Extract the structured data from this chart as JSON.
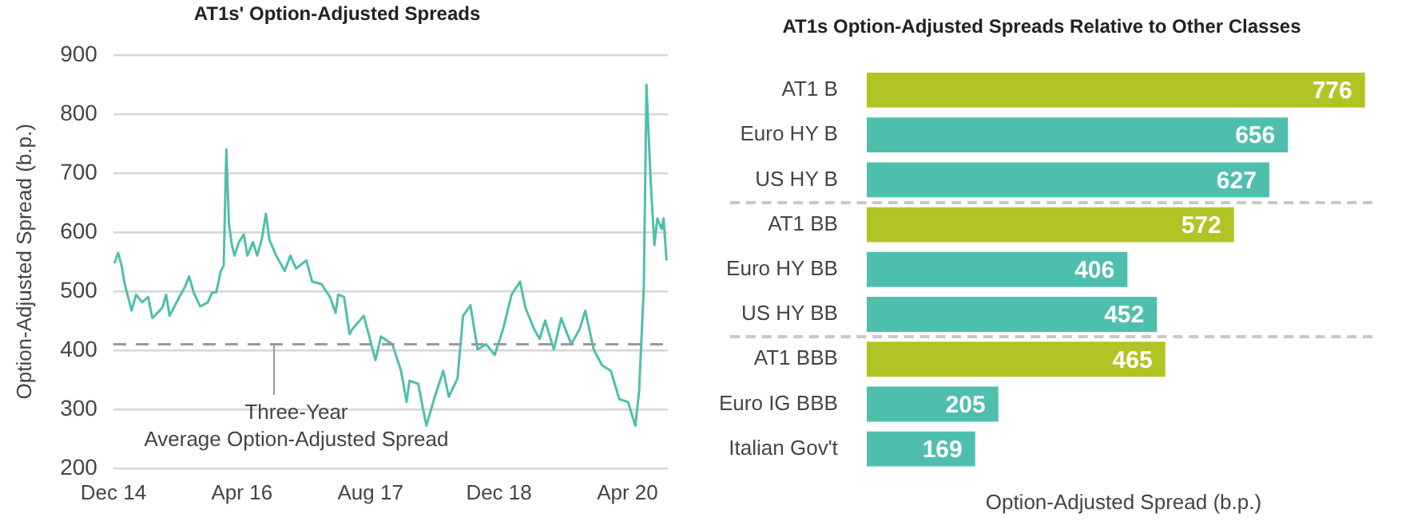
{
  "chart_data": [
    {
      "type": "line",
      "title": "AT1s' Option-Adjusted Spreads",
      "ylabel": "Option-Adjusted Spread (b.p.)",
      "color": "#4fbfad",
      "x": [
        "2014-12-05",
        "2014-12-19",
        "2015-01-01",
        "2015-01-13",
        "2015-02-08",
        "2015-02-25",
        "2015-03-20",
        "2015-04-12",
        "2015-04-28",
        "2015-06-05",
        "2015-06-19",
        "2015-07-02",
        "2015-08-08",
        "2015-08-29",
        "2015-09-14",
        "2015-10-01",
        "2015-10-26",
        "2015-11-24",
        "2015-12-09",
        "2015-12-26",
        "2016-01-12",
        "2016-01-23",
        "2016-02-02",
        "2016-02-12",
        "2016-02-23",
        "2016-03-04",
        "2016-03-21",
        "2016-04-08",
        "2016-04-22",
        "2016-05-13",
        "2016-05-29",
        "2016-06-15",
        "2016-07-01",
        "2016-07-14",
        "2016-08-09",
        "2016-09-10",
        "2016-10-02",
        "2016-10-23",
        "2016-12-01",
        "2016-12-23",
        "2017-01-28",
        "2017-02-09",
        "2017-03-01",
        "2017-03-22",
        "2017-04-01",
        "2017-04-23",
        "2017-05-14",
        "2017-05-25",
        "2017-07-07",
        "2017-08-20",
        "2017-09-10",
        "2017-10-23",
        "2017-11-25",
        "2017-12-16",
        "2017-12-27",
        "2018-01-29",
        "2018-03-01",
        "2018-04-02",
        "2018-05-04",
        "2018-05-25",
        "2018-06-27",
        "2018-07-18",
        "2018-08-15",
        "2018-09-11",
        "2018-10-13",
        "2018-11-15",
        "2018-12-17",
        "2019-01-18",
        "2019-02-19",
        "2019-03-11",
        "2019-04-13",
        "2019-05-04",
        "2019-05-25",
        "2019-06-27",
        "2019-07-25",
        "2019-09-01",
        "2019-10-03",
        "2019-10-24",
        "2019-11-25",
        "2019-12-27",
        "2020-01-29",
        "2020-03-01",
        "2020-04-03",
        "2020-05-01",
        "2020-05-15",
        "2020-06-02",
        "2020-06-12",
        "2020-06-28",
        "2020-07-12",
        "2020-07-23",
        "2020-08-09",
        "2020-08-16",
        "2020-08-27"
      ],
      "values": [
        547,
        565,
        543,
        512,
        467,
        494,
        481,
        490,
        454,
        472,
        494,
        458,
        490,
        507,
        525,
        498,
        474,
        481,
        497,
        498,
        534,
        543,
        740,
        614,
        578,
        560,
        583,
        596,
        560,
        583,
        560,
        587,
        631,
        587,
        560,
        534,
        560,
        538,
        552,
        516,
        512,
        503,
        490,
        463,
        494,
        490,
        427,
        436,
        458,
        383,
        423,
        410,
        365,
        312,
        348,
        343,
        272,
        321,
        365,
        321,
        352,
        458,
        476,
        401,
        410,
        392,
        436,
        494,
        516,
        472,
        436,
        419,
        450,
        401,
        454,
        410,
        436,
        467,
        401,
        374,
        365,
        317,
        312,
        272,
        330,
        507,
        849,
        685,
        578,
        623,
        605,
        623,
        552
      ],
      "xlim": [
        "2014-12-01",
        "2020-09-01"
      ],
      "xticks": [
        {
          "value": "2014-12-01",
          "label": "Dec 14"
        },
        {
          "value": "2016-04-01",
          "label": "Apr 16"
        },
        {
          "value": "2017-08-01",
          "label": "Aug 17"
        },
        {
          "value": "2018-12-01",
          "label": "Dec 18"
        },
        {
          "value": "2020-04-01",
          "label": "Apr 20"
        }
      ],
      "ylim": [
        200,
        900
      ],
      "yticks": [
        200,
        300,
        400,
        500,
        600,
        700,
        800,
        900
      ],
      "grid": "y",
      "legend": false,
      "marker": "none",
      "line_style": "solid",
      "ref_lines": [
        {
          "axis": "y",
          "value": 410,
          "label": "Three-Year\nAverage Option-Adjusted Spread",
          "color": "#999999",
          "line_style": "dashed"
        }
      ]
    },
    {
      "type": "bar",
      "orientation": "horizontal",
      "title": "AT1s Option-Adjusted Spreads Relative to Other Classes",
      "xlabel": "Option-Adjusted Spread (b.p.)",
      "categories": [
        "AT1 B",
        "Euro HY B",
        "US HY B",
        "AT1 BB",
        "Euro HY BB",
        "US HY BB",
        "AT1 BBB",
        "Euro IG BBB",
        "Italian Gov't"
      ],
      "values": [
        776,
        656,
        627,
        572,
        406,
        452,
        465,
        205,
        169
      ],
      "colors": [
        "#b2c424",
        "#4fbfad",
        "#4fbfad",
        "#b2c424",
        "#4fbfad",
        "#4fbfad",
        "#b2c424",
        "#4fbfad",
        "#4fbfad"
      ],
      "data_labels": true,
      "tick_labels": "y",
      "legend": false,
      "grid": false
    }
  ]
}
